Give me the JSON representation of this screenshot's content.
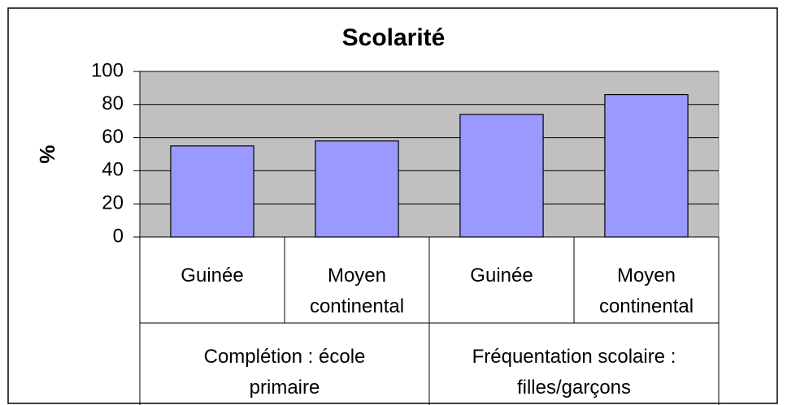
{
  "chart_data": {
    "type": "bar",
    "title": "Scolarité",
    "y_label": "%",
    "categories": [
      "Guinée",
      "Moyen continental",
      "Guinée",
      "Moyen continental"
    ],
    "groups": [
      "Complétion : école primaire",
      "Fréquentation scolaire : filles/garçons"
    ],
    "values": [
      55,
      58,
      74,
      86
    ],
    "color": "#9999ff",
    "background": "#c0c0c0",
    "ylim": [
      0,
      100
    ],
    "yticks": [
      0,
      20,
      40,
      60,
      80,
      100
    ],
    "grid": true
  }
}
